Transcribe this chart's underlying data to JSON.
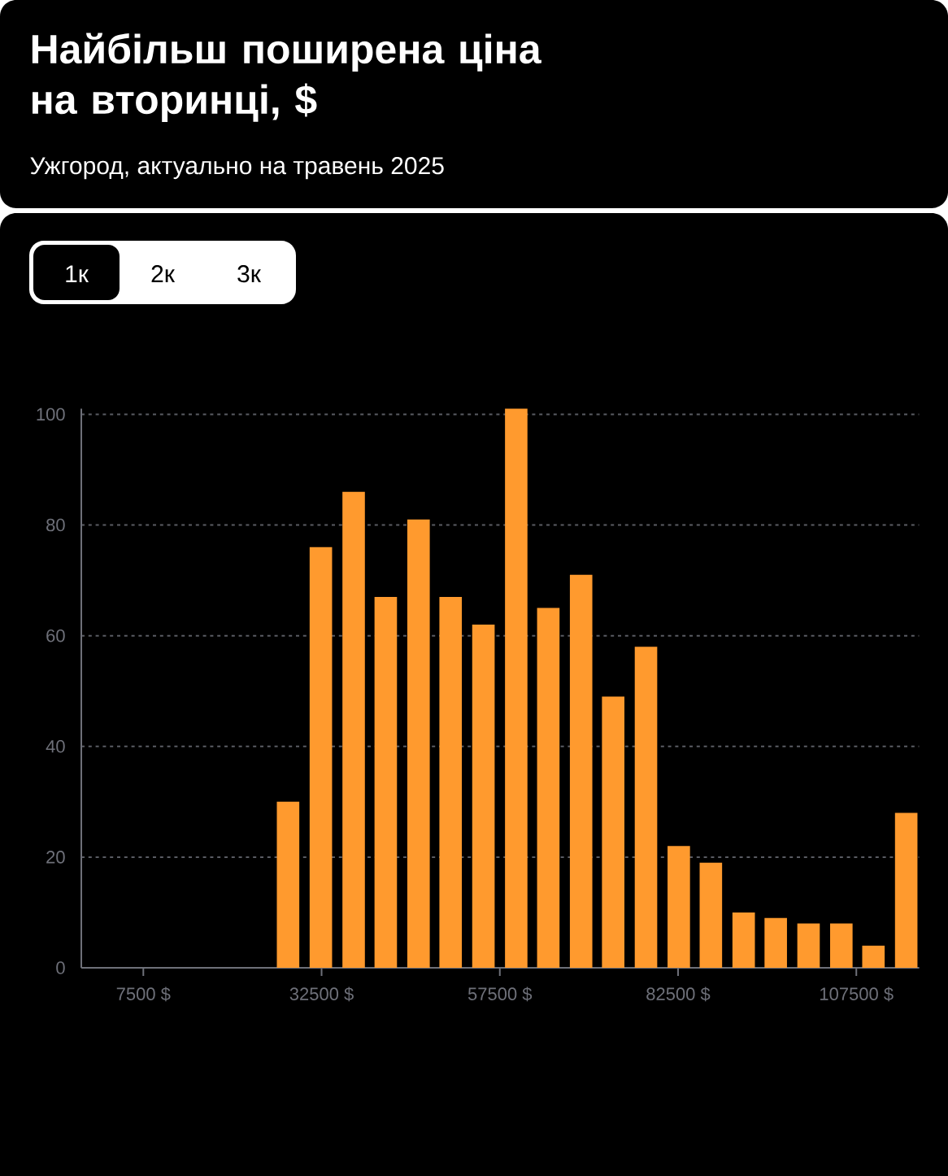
{
  "chart_data": {
    "type": "bar",
    "title": "Найбільш поширена ціна на вторинці, $",
    "subtitle": "Ужгород, актуально на травень 2025",
    "annotations": [
      "1к",
      "2к",
      "3к"
    ],
    "x": [
      27800,
      32400,
      37000,
      41500,
      46100,
      50600,
      55200,
      59800,
      64300,
      68900,
      73400,
      78000,
      82600,
      87100,
      91700,
      96200,
      100800,
      105400,
      109900,
      114500
    ],
    "values": [
      30,
      76,
      86,
      67,
      81,
      67,
      62,
      101,
      65,
      71,
      49,
      58,
      22,
      19,
      10,
      9,
      8,
      8,
      4,
      28
    ],
    "color": "#ff9a2e",
    "xlim": [
      -1200,
      116300
    ],
    "xticks": [
      {
        "value": 7500,
        "label": "7500 $"
      },
      {
        "value": 32500,
        "label": "32500 $"
      },
      {
        "value": 57500,
        "label": "57500 $"
      },
      {
        "value": 82500,
        "label": "82500 $"
      },
      {
        "value": 107500,
        "label": "107500 $"
      }
    ],
    "ylim": [
      0,
      101
    ],
    "yticks": [
      0,
      20,
      40,
      60,
      80,
      100
    ],
    "grid": "y"
  }
}
